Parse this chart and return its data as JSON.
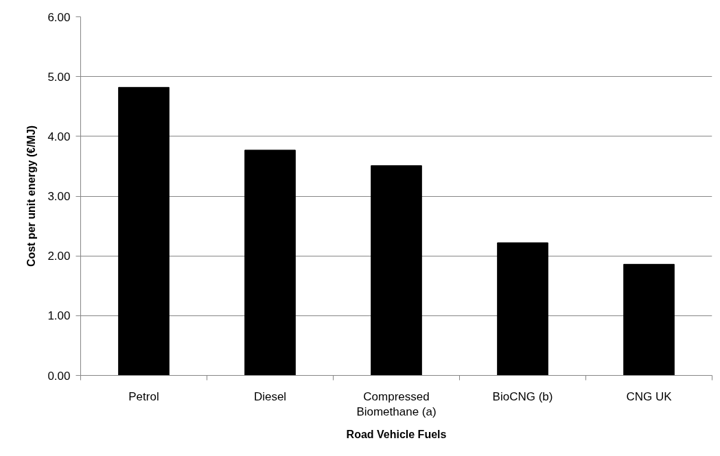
{
  "chart_data": {
    "type": "bar",
    "xlabel": "Road Vehicle Fuels",
    "ylabel": "Cost per unit energy (€/MJ)",
    "categories": [
      "Petrol",
      "Diesel",
      "Compressed Biomethane (a)",
      "BioCNG (b)",
      "CNG UK"
    ],
    "values": [
      4.82,
      3.77,
      3.51,
      2.22,
      1.86
    ],
    "color": "#000000",
    "ylim": [
      0,
      6
    ],
    "yticks": [
      {
        "value": 0,
        "label": "0.00"
      },
      {
        "value": 1,
        "label": "1.00"
      },
      {
        "value": 2,
        "label": "2.00"
      },
      {
        "value": 3,
        "label": "3.00"
      },
      {
        "value": 4,
        "label": "4.00"
      },
      {
        "value": 5,
        "label": "5.00"
      },
      {
        "value": 6,
        "label": "6.00"
      }
    ],
    "grid": "y"
  }
}
